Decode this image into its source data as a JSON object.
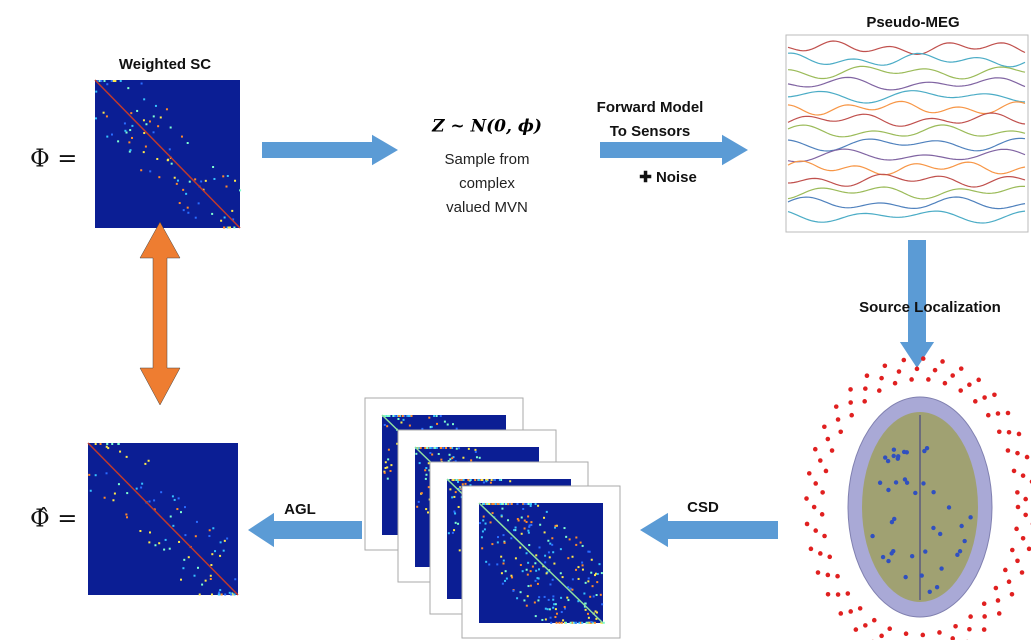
{
  "top_matrix": {
    "title": "Weighted SC",
    "symbol": "Φ ="
  },
  "sampling": {
    "formula": "Z ~ N(0, ϕ)",
    "lines": [
      "Sample from",
      "complex",
      "valued MVN"
    ]
  },
  "forward": {
    "lines": [
      "Forward Model",
      "To Sensors"
    ],
    "noise": "✚ Noise"
  },
  "meg": {
    "title": "Pseudo-MEG"
  },
  "localization": {
    "label": "Source Localization"
  },
  "csd": {
    "label": "CSD"
  },
  "agl": {
    "label": "AGL"
  },
  "bottom_matrix": {
    "symbol": "Φ̂ ="
  }
}
